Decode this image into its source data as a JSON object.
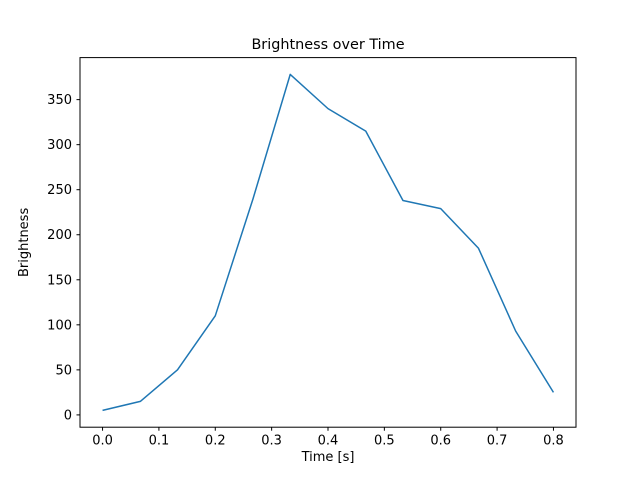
{
  "figure": {
    "background": "#ffffff"
  },
  "chart_data": {
    "type": "line",
    "title": "Brightness over Time",
    "xlabel": "Time [s]",
    "ylabel": "Brightness",
    "x": [
      0.0,
      0.067,
      0.133,
      0.2,
      0.267,
      0.333,
      0.4,
      0.467,
      0.533,
      0.6,
      0.667,
      0.733,
      0.8
    ],
    "y": [
      5,
      15,
      50,
      110,
      240,
      378,
      340,
      315,
      238,
      229,
      185,
      93,
      25
    ],
    "series": [
      {
        "name": "Brightness",
        "values": [
          5,
          15,
          50,
          110,
          240,
          378,
          340,
          315,
          238,
          229,
          185,
          93,
          25
        ]
      }
    ],
    "line_color": "#1f77b4",
    "axis_color": "#000000",
    "x_ticks": [
      0.0,
      0.1,
      0.2,
      0.3,
      0.4,
      0.5,
      0.6,
      0.7,
      0.8
    ],
    "y_ticks": [
      0,
      50,
      100,
      150,
      200,
      250,
      300,
      350
    ],
    "xlim": [
      -0.04,
      0.84
    ],
    "ylim": [
      -13.65,
      396.65
    ],
    "grid": false,
    "legend_position": "none"
  }
}
